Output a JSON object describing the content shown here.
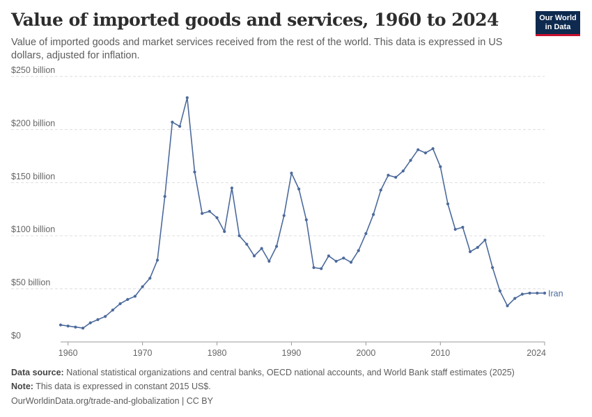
{
  "header": {
    "title": "Value of imported goods and services, 1960 to 2024",
    "subtitle": "Value of imported goods and market services received from the rest of the world. This data is expressed in US dollars, adjusted for inflation.",
    "logo_line1": "Our World",
    "logo_line2": "in Data"
  },
  "footer": {
    "source_label": "Data source:",
    "source_text": "National statistical organizations and central banks, OECD national accounts, and World Bank staff estimates (2025)",
    "note_label": "Note:",
    "note_text": "This data is expressed in constant 2015 US$.",
    "credit": "OurWorldinData.org/trade-and-globalization | CC BY"
  },
  "colors": {
    "series": "#4c6a9c",
    "grid": "#dddddd",
    "axis": "#999999"
  },
  "chart_data": {
    "type": "line",
    "title": "Value of imported goods and services, 1960 to 2024",
    "xlabel": "",
    "ylabel": "",
    "xlim": [
      1959,
      2024
    ],
    "ylim": [
      0,
      250
    ],
    "y_unit": "billion US$",
    "grid": true,
    "x_ticks": [
      1960,
      1970,
      1980,
      1990,
      2000,
      2010,
      2024
    ],
    "y_ticks": [
      {
        "value": 0,
        "label": "$0"
      },
      {
        "value": 50,
        "label": "$50 billion"
      },
      {
        "value": 100,
        "label": "$100 billion"
      },
      {
        "value": 150,
        "label": "$150 billion"
      },
      {
        "value": 200,
        "label": "$200 billion"
      },
      {
        "value": 250,
        "label": "$250 billion"
      }
    ],
    "series": [
      {
        "name": "Iran",
        "x": [
          1959,
          1960,
          1961,
          1962,
          1963,
          1964,
          1965,
          1966,
          1967,
          1968,
          1969,
          1970,
          1971,
          1972,
          1973,
          1974,
          1975,
          1976,
          1977,
          1978,
          1979,
          1980,
          1981,
          1982,
          1983,
          1984,
          1985,
          1986,
          1987,
          1988,
          1989,
          1990,
          1991,
          1992,
          1993,
          1994,
          1995,
          1996,
          1997,
          1998,
          1999,
          2000,
          2001,
          2002,
          2003,
          2004,
          2005,
          2006,
          2007,
          2008,
          2009,
          2010,
          2011,
          2012,
          2013,
          2014,
          2015,
          2016,
          2017,
          2018,
          2019,
          2020,
          2021,
          2022,
          2023,
          2024
        ],
        "values": [
          16,
          15,
          14,
          13,
          18,
          21,
          24,
          30,
          36,
          40,
          43,
          52,
          60,
          77,
          137,
          207,
          203,
          230,
          160,
          121,
          123,
          117,
          104,
          145,
          100,
          92,
          81,
          88,
          76,
          90,
          119,
          159,
          144,
          115,
          70,
          69,
          81,
          76,
          79,
          75,
          86,
          102,
          120,
          143,
          157,
          155,
          161,
          171,
          181,
          178,
          182,
          165,
          130,
          106,
          108,
          85,
          89,
          96,
          70,
          48,
          34,
          41,
          45,
          46,
          46,
          46
        ]
      }
    ]
  }
}
